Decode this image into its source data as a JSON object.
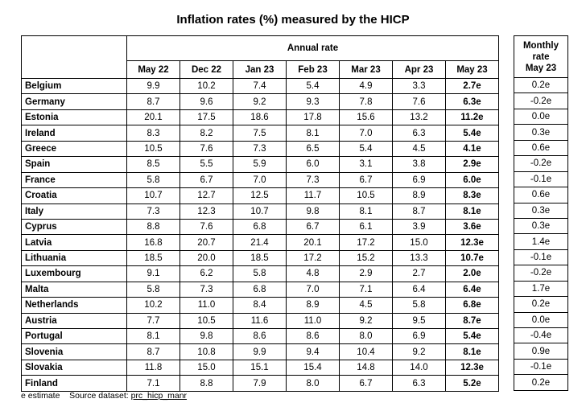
{
  "title": "Inflation rates (%) measured by the HICP",
  "annual_header": "Annual rate",
  "monthly_header_line1": "Monthly",
  "monthly_header_line2": "rate",
  "columns": [
    "May 22",
    "Dec 22",
    "Jan 23",
    "Feb 23",
    "Mar 23",
    "Apr 23",
    "May 23"
  ],
  "monthly_column": "May 23",
  "rows": [
    {
      "country": "Belgium",
      "values": [
        "9.9",
        "10.2",
        "7.4",
        "5.4",
        "4.9",
        "3.3",
        "2.7e"
      ],
      "monthly": "0.2e"
    },
    {
      "country": "Germany",
      "values": [
        "8.7",
        "9.6",
        "9.2",
        "9.3",
        "7.8",
        "7.6",
        "6.3e"
      ],
      "monthly": "-0.2e"
    },
    {
      "country": "Estonia",
      "values": [
        "20.1",
        "17.5",
        "18.6",
        "17.8",
        "15.6",
        "13.2",
        "11.2e"
      ],
      "monthly": "0.0e"
    },
    {
      "country": "Ireland",
      "values": [
        "8.3",
        "8.2",
        "7.5",
        "8.1",
        "7.0",
        "6.3",
        "5.4e"
      ],
      "monthly": "0.3e"
    },
    {
      "country": "Greece",
      "values": [
        "10.5",
        "7.6",
        "7.3",
        "6.5",
        "5.4",
        "4.5",
        "4.1e"
      ],
      "monthly": "0.6e"
    },
    {
      "country": "Spain",
      "values": [
        "8.5",
        "5.5",
        "5.9",
        "6.0",
        "3.1",
        "3.8",
        "2.9e"
      ],
      "monthly": "-0.2e"
    },
    {
      "country": "France",
      "values": [
        "5.8",
        "6.7",
        "7.0",
        "7.3",
        "6.7",
        "6.9",
        "6.0e"
      ],
      "monthly": "-0.1e"
    },
    {
      "country": "Croatia",
      "values": [
        "10.7",
        "12.7",
        "12.5",
        "11.7",
        "10.5",
        "8.9",
        "8.3e"
      ],
      "monthly": "0.6e"
    },
    {
      "country": "Italy",
      "values": [
        "7.3",
        "12.3",
        "10.7",
        "9.8",
        "8.1",
        "8.7",
        "8.1e"
      ],
      "monthly": "0.3e"
    },
    {
      "country": "Cyprus",
      "values": [
        "8.8",
        "7.6",
        "6.8",
        "6.7",
        "6.1",
        "3.9",
        "3.6e"
      ],
      "monthly": "0.3e"
    },
    {
      "country": "Latvia",
      "values": [
        "16.8",
        "20.7",
        "21.4",
        "20.1",
        "17.2",
        "15.0",
        "12.3e"
      ],
      "monthly": "1.4e"
    },
    {
      "country": "Lithuania",
      "values": [
        "18.5",
        "20.0",
        "18.5",
        "17.2",
        "15.2",
        "13.3",
        "10.7e"
      ],
      "monthly": "-0.1e"
    },
    {
      "country": "Luxembourg",
      "values": [
        "9.1",
        "6.2",
        "5.8",
        "4.8",
        "2.9",
        "2.7",
        "2.0e"
      ],
      "monthly": "-0.2e"
    },
    {
      "country": "Malta",
      "values": [
        "5.8",
        "7.3",
        "6.8",
        "7.0",
        "7.1",
        "6.4",
        "6.4e"
      ],
      "monthly": "1.7e"
    },
    {
      "country": "Netherlands",
      "values": [
        "10.2",
        "11.0",
        "8.4",
        "8.9",
        "4.5",
        "5.8",
        "6.8e"
      ],
      "monthly": "0.2e"
    },
    {
      "country": "Austria",
      "values": [
        "7.7",
        "10.5",
        "11.6",
        "11.0",
        "9.2",
        "9.5",
        "8.7e"
      ],
      "monthly": "0.0e"
    },
    {
      "country": "Portugal",
      "values": [
        "8.1",
        "9.8",
        "8.6",
        "8.6",
        "8.0",
        "6.9",
        "5.4e"
      ],
      "monthly": "-0.4e"
    },
    {
      "country": "Slovenia",
      "values": [
        "8.7",
        "10.8",
        "9.9",
        "9.4",
        "10.4",
        "9.2",
        "8.1e"
      ],
      "monthly": "0.9e"
    },
    {
      "country": "Slovakia",
      "values": [
        "11.8",
        "15.0",
        "15.1",
        "15.4",
        "14.8",
        "14.0",
        "12.3e"
      ],
      "monthly": "-0.1e"
    },
    {
      "country": "Finland",
      "values": [
        "7.1",
        "8.8",
        "7.9",
        "8.0",
        "6.7",
        "6.3",
        "5.2e"
      ],
      "monthly": "0.2e"
    }
  ],
  "footnote": {
    "estimate_note": "e estimate",
    "source_label": "Source dataset:",
    "source_dataset": "prc_hicp_manr"
  }
}
